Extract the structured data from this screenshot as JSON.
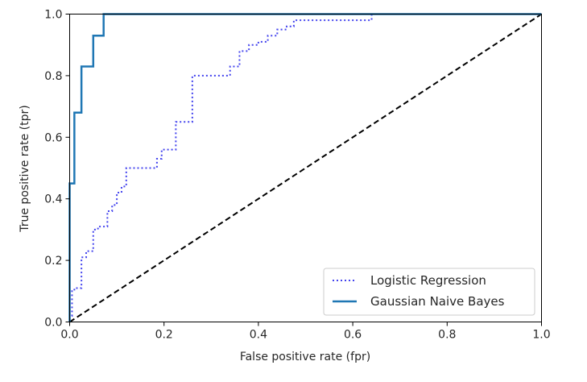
{
  "chart_data": {
    "type": "line",
    "title": "",
    "xlabel": "False positive rate (fpr)",
    "ylabel": "True positive rate (tpr)",
    "xlim": [
      0.0,
      1.0
    ],
    "ylim": [
      0.0,
      1.0
    ],
    "xticks": [
      0.0,
      0.2,
      0.4,
      0.6,
      0.8,
      1.0
    ],
    "yticks": [
      0.0,
      0.2,
      0.4,
      0.6,
      0.8,
      1.0
    ],
    "xtick_labels": [
      "0.0",
      "0.2",
      "0.4",
      "0.6",
      "0.8",
      "1.0"
    ],
    "ytick_labels": [
      "0.0",
      "0.2",
      "0.4",
      "0.6",
      "0.8",
      "1.0"
    ],
    "grid": false,
    "legend_position": "lower right",
    "series": [
      {
        "name": "Logistic Regression",
        "style": "dotted",
        "color": "#4444ee",
        "x": [
          0.0,
          0.0,
          0.005,
          0.005,
          0.01,
          0.01,
          0.025,
          0.025,
          0.035,
          0.035,
          0.05,
          0.05,
          0.06,
          0.06,
          0.08,
          0.08,
          0.09,
          0.09,
          0.1,
          0.1,
          0.11,
          0.11,
          0.12,
          0.12,
          0.13,
          0.13,
          0.185,
          0.185,
          0.195,
          0.195,
          0.225,
          0.225,
          0.26,
          0.26,
          0.34,
          0.34,
          0.36,
          0.36,
          0.38,
          0.38,
          0.4,
          0.4,
          0.42,
          0.42,
          0.44,
          0.44,
          0.46,
          0.46,
          0.475,
          0.475,
          0.63,
          0.63,
          0.64,
          0.64,
          1.0
        ],
        "y": [
          0.0,
          0.02,
          0.02,
          0.1,
          0.1,
          0.11,
          0.11,
          0.21,
          0.21,
          0.23,
          0.23,
          0.3,
          0.3,
          0.31,
          0.31,
          0.36,
          0.36,
          0.38,
          0.38,
          0.42,
          0.42,
          0.44,
          0.44,
          0.5,
          0.5,
          0.5,
          0.5,
          0.53,
          0.53,
          0.56,
          0.56,
          0.65,
          0.65,
          0.8,
          0.8,
          0.83,
          0.83,
          0.88,
          0.88,
          0.9,
          0.9,
          0.91,
          0.91,
          0.93,
          0.93,
          0.95,
          0.95,
          0.96,
          0.96,
          0.98,
          0.98,
          0.98,
          0.98,
          1.0,
          1.0
        ]
      },
      {
        "name": "Gaussian Naive Bayes",
        "style": "solid",
        "color": "#1f77b4",
        "x": [
          0.0,
          0.0,
          0.01,
          0.01,
          0.025,
          0.025,
          0.05,
          0.05,
          0.072,
          0.072,
          1.0
        ],
        "y": [
          0.0,
          0.45,
          0.45,
          0.68,
          0.68,
          0.83,
          0.83,
          0.93,
          0.93,
          1.0,
          1.0
        ]
      },
      {
        "style": "dashed",
        "color": "#000000",
        "x": [
          0.0,
          1.0
        ],
        "y": [
          0.0,
          1.0
        ]
      }
    ]
  },
  "legend": {
    "items": [
      {
        "label": "Logistic Regression"
      },
      {
        "label": "Gaussian Naive Bayes"
      }
    ]
  }
}
